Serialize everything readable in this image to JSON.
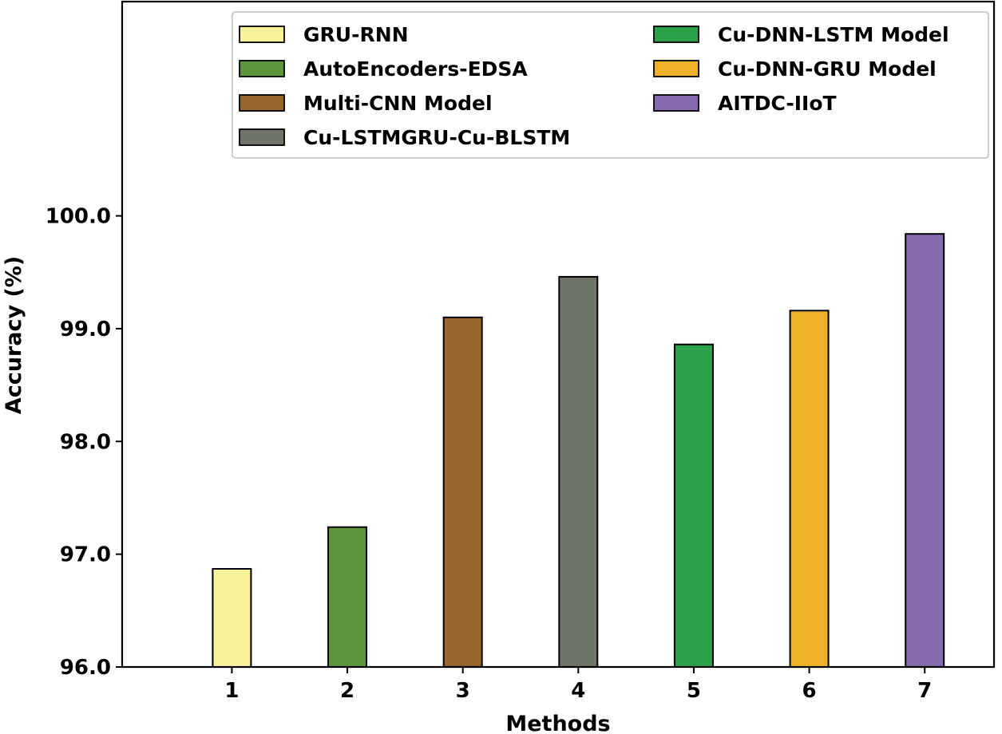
{
  "chart_data": {
    "type": "bar",
    "title": "",
    "xlabel": "Methods",
    "ylabel": "Accuracy (%)",
    "ylim": [
      96.0,
      101.9
    ],
    "yticks": [
      "96.0",
      "97.0",
      "98.0",
      "99.0",
      "100.0"
    ],
    "categories": [
      "1",
      "2",
      "3",
      "4",
      "5",
      "6",
      "7"
    ],
    "series": [
      {
        "name": "GRU-RNN",
        "category": "1",
        "value": 96.87,
        "color": "#faf29a"
      },
      {
        "name": "AutoEncoders-EDSA",
        "category": "2",
        "value": 97.24,
        "color": "#5f963d"
      },
      {
        "name": "Multi-CNN Model",
        "category": "3",
        "value": 99.1,
        "color": "#98652a"
      },
      {
        "name": "Cu-LSTMGRU-Cu-BLSTM",
        "category": "4",
        "value": 99.46,
        "color": "#6e7566"
      },
      {
        "name": "Cu-DNN-LSTM Model",
        "category": "5",
        "value": 98.86,
        "color": "#2ba24a"
      },
      {
        "name": "Cu-DNN-GRU Model",
        "category": "6",
        "value": 99.16,
        "color": "#eeb12a"
      },
      {
        "name": "AITDC-IIoT",
        "category": "7",
        "value": 99.84,
        "color": "#8669ae"
      }
    ],
    "grid": false,
    "legend_position": "top-right"
  }
}
